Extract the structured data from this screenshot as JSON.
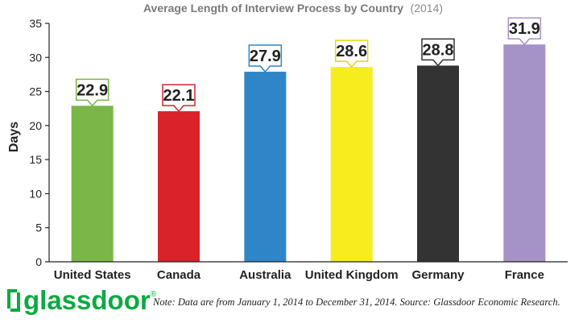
{
  "chart_data": {
    "type": "bar",
    "title": "Average Length of Interview Process by Country",
    "subtitle": "(2014)",
    "ylabel": "Days",
    "xlabel": "",
    "ylim": [
      0,
      35
    ],
    "yticks": [
      "0",
      "5",
      "10",
      "15",
      "20",
      "25",
      "30",
      "35"
    ],
    "categories": [
      "United States",
      "Canada",
      "Australia",
      "United Kingdom",
      "Germany",
      "France"
    ],
    "values": [
      22.9,
      22.1,
      27.9,
      28.6,
      28.8,
      31.9
    ],
    "data_labels": [
      "22.9",
      "22.1",
      "27.9",
      "28.6",
      "28.8",
      "31.9"
    ],
    "colors": [
      "#7ab648",
      "#d9222a",
      "#2e86c8",
      "#f7ec1e",
      "#333333",
      "#a592c6"
    ],
    "grid": false,
    "legend": "none"
  },
  "footer": {
    "logo_text": "glassdoor",
    "logo_reg": "®",
    "note": "Note: Data are from January 1, 2014 to December 31, 2014. Source: Glassdoor Economic Research."
  },
  "logo_color": "#0caa41"
}
